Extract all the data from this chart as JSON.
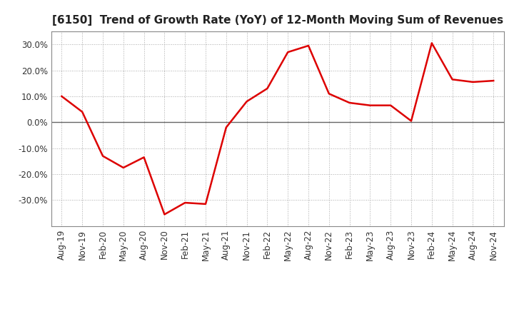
{
  "title": "[6150]  Trend of Growth Rate (YoY) of 12-Month Moving Sum of Revenues",
  "x_labels": [
    "Aug-19",
    "Nov-19",
    "Feb-20",
    "May-20",
    "Aug-20",
    "Nov-20",
    "Feb-21",
    "May-21",
    "Aug-21",
    "Nov-21",
    "Feb-22",
    "May-22",
    "Aug-22",
    "Nov-22",
    "Feb-23",
    "May-23",
    "Aug-23",
    "Nov-23",
    "Feb-24",
    "May-24",
    "Aug-24",
    "Nov-24"
  ],
  "y_values": [
    10.0,
    4.0,
    -13.0,
    -17.5,
    -13.5,
    -35.5,
    -31.0,
    -31.5,
    -2.0,
    8.0,
    13.0,
    27.0,
    29.5,
    11.0,
    7.5,
    6.5,
    6.5,
    0.5,
    30.5,
    16.5,
    15.5,
    16.0
  ],
  "line_color": "#dd0000",
  "line_width": 1.8,
  "background_color": "#ffffff",
  "plot_bg_color": "#ffffff",
  "grid_color": "#aaaaaa",
  "ylim": [
    -40,
    35
  ],
  "yticks": [
    -30,
    -20,
    -10,
    0,
    10,
    20,
    30
  ],
  "title_fontsize": 11,
  "tick_fontsize": 8.5,
  "zero_line_color": "#666666",
  "spine_color": "#888888"
}
